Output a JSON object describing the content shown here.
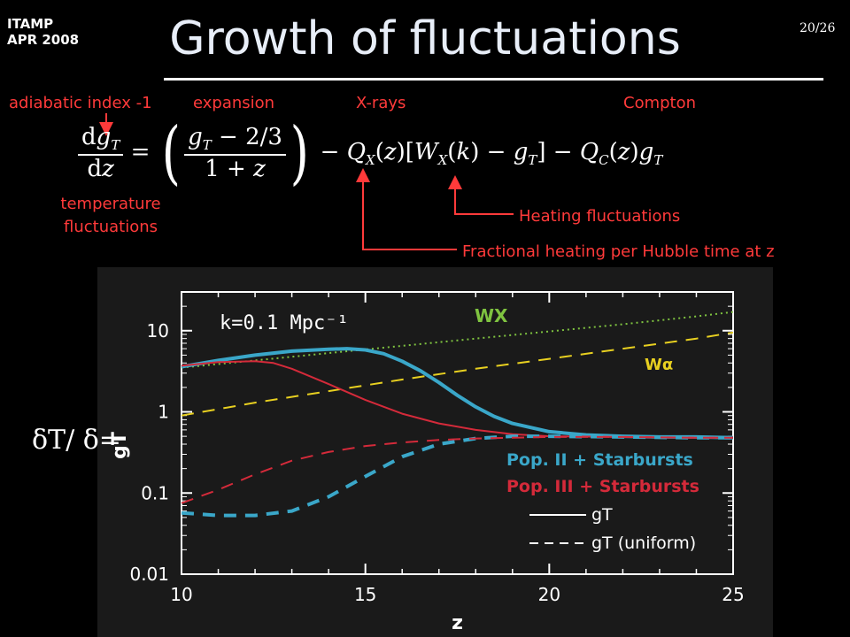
{
  "header": {
    "institute": "ITAMP",
    "date": "APR 2008",
    "page": "20/26"
  },
  "title": "Growth of fluctuations",
  "annotations": {
    "adiabatic": "adiabatic index -1",
    "expansion": "expansion",
    "xrays": "X-rays",
    "compton": "Compton",
    "temperature_1": "temperature",
    "temperature_2": "fluctuations",
    "heating_fluct": "Heating fluctuations",
    "fractional_heating": "Fractional heating per Hubble time at z"
  },
  "side_label": "δT/ δ=",
  "colors": {
    "accent": "#ff3a3a",
    "popII": "#3aa7c9",
    "popIII": "#d42a3a",
    "wx": "#7fc340",
    "walpha": "#e8d020",
    "plot_bg": "#1a1a1a"
  },
  "chart_data": {
    "type": "line",
    "inset_label": "k=0.1 Mpc⁻¹",
    "xlabel": "z",
    "ylabel": "gT",
    "xlim": [
      10,
      25
    ],
    "ylim": [
      0.01,
      30
    ],
    "log_y": true,
    "x_ticks": [
      "10",
      "15",
      "20",
      "25"
    ],
    "y_ticks": [
      "10",
      "1",
      "0.1",
      "0.01"
    ],
    "legend": [
      "Pop. II + Starbursts",
      "Pop. III + Starbursts",
      "gT",
      "gT (uniform)"
    ],
    "series": [
      {
        "name": "WX",
        "style": "dotted",
        "color": "#7fc340",
        "x": [
          10,
          12,
          14,
          16,
          18,
          20,
          22,
          24,
          25
        ],
        "y": [
          3.5,
          4.3,
          5.3,
          6.5,
          8.0,
          9.8,
          12.0,
          15.0,
          17.0
        ]
      },
      {
        "name": "Wα",
        "style": "dashed",
        "color": "#e8d020",
        "x": [
          10,
          12,
          14,
          16,
          18,
          20,
          22,
          24,
          25
        ],
        "y": [
          0.9,
          1.3,
          1.8,
          2.5,
          3.4,
          4.5,
          6.0,
          8.0,
          9.5
        ]
      },
      {
        "name": "Pop. II + Starbursts",
        "style": "solid",
        "color": "#3aa7c9",
        "x": [
          10,
          11,
          12,
          13,
          14,
          14.5,
          15,
          15.5,
          16,
          16.5,
          17,
          17.5,
          18,
          18.5,
          19,
          20,
          21,
          22,
          23,
          24,
          25
        ],
        "y": [
          3.6,
          4.3,
          5.0,
          5.6,
          5.9,
          6.0,
          5.8,
          5.2,
          4.2,
          3.2,
          2.3,
          1.6,
          1.15,
          0.88,
          0.72,
          0.57,
          0.52,
          0.5,
          0.49,
          0.49,
          0.48
        ]
      },
      {
        "name": "Pop. III + Starbursts",
        "style": "solid",
        "color": "#d42a3a",
        "x": [
          10,
          11,
          12,
          12.5,
          13,
          14,
          15,
          16,
          17,
          18,
          19,
          20,
          22,
          24,
          25
        ],
        "y": [
          3.7,
          4.1,
          4.2,
          4.0,
          3.4,
          2.2,
          1.4,
          0.95,
          0.72,
          0.6,
          0.53,
          0.5,
          0.49,
          0.48,
          0.48
        ]
      },
      {
        "name": "Pop. II + Starbursts (uniform)",
        "style": "dashed",
        "color": "#3aa7c9",
        "x": [
          10,
          11,
          12,
          13,
          14,
          15,
          16,
          17,
          18,
          19,
          20,
          22,
          24,
          25
        ],
        "y": [
          0.057,
          0.053,
          0.053,
          0.06,
          0.09,
          0.16,
          0.28,
          0.4,
          0.47,
          0.5,
          0.5,
          0.49,
          0.48,
          0.48
        ]
      },
      {
        "name": "Pop. III + Starbursts (uniform)",
        "style": "dashed",
        "color": "#d42a3a",
        "x": [
          10,
          11,
          12,
          13,
          14,
          15,
          16,
          17,
          18,
          19,
          20,
          22,
          24,
          25
        ],
        "y": [
          0.075,
          0.11,
          0.17,
          0.25,
          0.32,
          0.38,
          0.42,
          0.45,
          0.47,
          0.48,
          0.49,
          0.49,
          0.48,
          0.48
        ]
      }
    ]
  }
}
